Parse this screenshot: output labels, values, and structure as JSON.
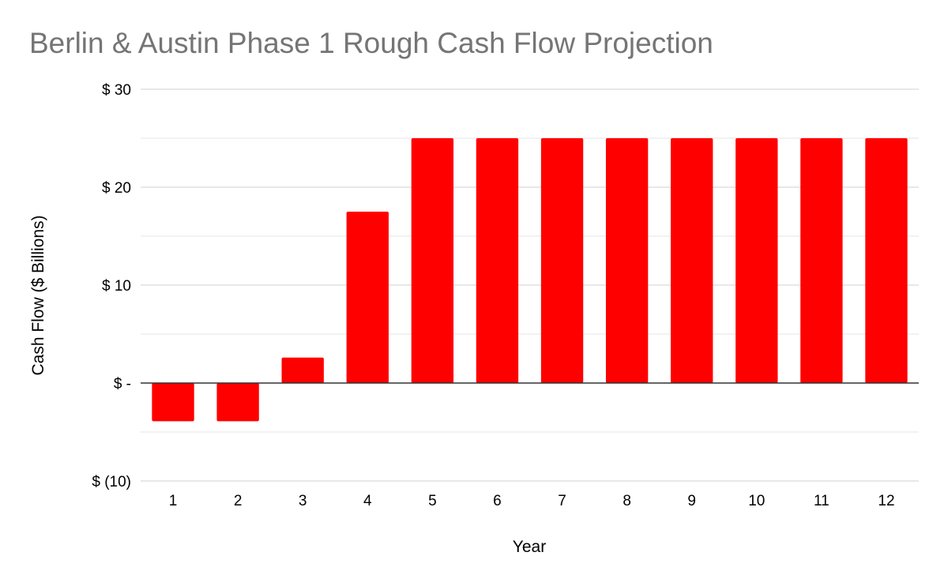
{
  "chart_data": {
    "type": "bar",
    "title": "Berlin & Austin Phase 1 Rough Cash Flow Projection",
    "xlabel": "Year",
    "ylabel": "Cash Flow ($ Billions)",
    "categories": [
      "1",
      "2",
      "3",
      "4",
      "5",
      "6",
      "7",
      "8",
      "9",
      "10",
      "11",
      "12"
    ],
    "values": [
      -3.9,
      -3.9,
      2.6,
      17.5,
      25,
      25,
      25,
      25,
      25,
      25,
      25,
      25
    ],
    "ylim": [
      -10,
      30
    ],
    "yticks": [
      {
        "value": 30,
        "label": "$ 30"
      },
      {
        "value": 20,
        "label": "$ 20"
      },
      {
        "value": 10,
        "label": "$ 10"
      },
      {
        "value": 0,
        "label": "$ -"
      },
      {
        "value": -10,
        "label": "$ (10)"
      }
    ],
    "minor_gridlines": [
      25,
      15,
      5,
      -5
    ],
    "grid": true,
    "legend": "none",
    "bar_color": "#ff0000",
    "gridline_color": "#d9d9d9",
    "zero_line_color": "#333333",
    "title_color": "#757575"
  }
}
